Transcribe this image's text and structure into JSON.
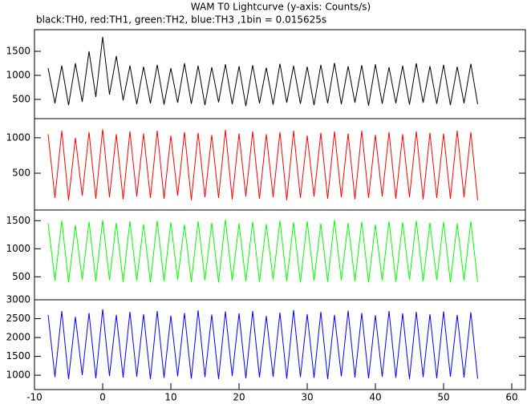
{
  "chart_data": [
    {
      "type": "line",
      "title": "WAM T0 Lightcurve (y-axis: Counts/s)",
      "subtitle": "black:TH0, red:TH1, green:TH2, blue:TH3 ,1bin = 0.015625s",
      "color": "#000000",
      "xlim": [
        -10,
        62
      ],
      "ylim": [
        100,
        1950
      ],
      "yticks": [
        500,
        1000,
        1500
      ],
      "x": [
        -8,
        -7,
        -6,
        -5,
        -4,
        -3,
        -2,
        -1,
        0,
        1,
        2,
        3,
        4,
        5,
        6,
        7,
        8,
        9,
        10,
        11,
        12,
        13,
        14,
        15,
        16,
        17,
        18,
        19,
        20,
        21,
        22,
        23,
        24,
        25,
        26,
        27,
        28,
        29,
        30,
        31,
        32,
        33,
        34,
        35,
        36,
        37,
        38,
        39,
        40,
        41,
        42,
        43,
        44,
        45,
        46,
        47,
        48,
        49,
        50,
        51,
        52,
        53,
        54,
        55
      ],
      "values": [
        1150,
        420,
        1200,
        380,
        1250,
        450,
        1500,
        550,
        1800,
        600,
        1400,
        480,
        1200,
        400,
        1180,
        420,
        1220,
        390,
        1150,
        430,
        1250,
        410,
        1200,
        380,
        1170,
        440,
        1230,
        400,
        1190,
        360,
        1210,
        420,
        1160,
        390,
        1240,
        430,
        1200,
        410,
        1180,
        380,
        1220,
        420,
        1260,
        400,
        1190,
        430,
        1210,
        370,
        1230,
        410,
        1170,
        420,
        1200,
        390,
        1250,
        430,
        1190,
        410,
        1220,
        380,
        1180,
        420,
        1240,
        400
      ]
    },
    {
      "type": "line",
      "color": "#ff0000",
      "xlim": [
        -10,
        62
      ],
      "ylim": [
        -20,
        1270
      ],
      "yticks": [
        500,
        1000
      ],
      "x": [
        -8,
        -7,
        -6,
        -5,
        -4,
        -3,
        -2,
        -1,
        0,
        1,
        2,
        3,
        4,
        5,
        6,
        7,
        8,
        9,
        10,
        11,
        12,
        13,
        14,
        15,
        16,
        17,
        18,
        19,
        20,
        21,
        22,
        23,
        24,
        25,
        26,
        27,
        28,
        29,
        30,
        31,
        32,
        33,
        34,
        35,
        36,
        37,
        38,
        39,
        40,
        41,
        42,
        43,
        44,
        45,
        46,
        47,
        48,
        49,
        50,
        51,
        52,
        53,
        54,
        55
      ],
      "values": [
        1050,
        150,
        1100,
        120,
        1000,
        180,
        1080,
        140,
        1120,
        160,
        1050,
        130,
        1090,
        170,
        1060,
        150,
        1100,
        140,
        1030,
        180,
        1080,
        120,
        1070,
        160,
        1040,
        150,
        1110,
        130,
        1060,
        170,
        1090,
        140,
        1050,
        160,
        1080,
        120,
        1100,
        150,
        1030,
        170,
        1070,
        140,
        1090,
        160,
        1060,
        130,
        1100,
        150,
        1040,
        170,
        1080,
        140,
        1050,
        160,
        1090,
        130,
        1070,
        150,
        1060,
        140,
        1100,
        160,
        1080,
        120
      ]
    },
    {
      "type": "line",
      "color": "#00ff00",
      "xlim": [
        -10,
        62
      ],
      "ylim": [
        90,
        1690
      ],
      "yticks": [
        500,
        1000,
        1500
      ],
      "x": [
        -8,
        -7,
        -6,
        -5,
        -4,
        -3,
        -2,
        -1,
        0,
        1,
        2,
        3,
        4,
        5,
        6,
        7,
        8,
        9,
        10,
        11,
        12,
        13,
        14,
        15,
        16,
        17,
        18,
        19,
        20,
        21,
        22,
        23,
        24,
        25,
        26,
        27,
        28,
        29,
        30,
        31,
        32,
        33,
        34,
        35,
        36,
        37,
        38,
        39,
        40,
        41,
        42,
        43,
        44,
        45,
        46,
        47,
        48,
        49,
        50,
        51,
        52,
        53,
        54,
        55
      ],
      "values": [
        1450,
        430,
        1500,
        400,
        1420,
        450,
        1480,
        420,
        1510,
        440,
        1460,
        410,
        1490,
        430,
        1440,
        400,
        1500,
        420,
        1470,
        450,
        1430,
        410,
        1490,
        440,
        1460,
        400,
        1520,
        430,
        1450,
        420,
        1480,
        410,
        1440,
        450,
        1500,
        420,
        1470,
        400,
        1490,
        430,
        1450,
        410,
        1510,
        440,
        1460,
        420,
        1480,
        400,
        1430,
        430,
        1490,
        410,
        1470,
        450,
        1500,
        420,
        1460,
        440,
        1480,
        400,
        1450,
        430,
        1490,
        410
      ]
    },
    {
      "type": "line",
      "color": "#0000ff",
      "xlim": [
        -10,
        62
      ],
      "ylim": [
        620,
        3000
      ],
      "yticks": [
        1000,
        1500,
        2000,
        2500,
        3000
      ],
      "xticks": [
        -10,
        0,
        10,
        20,
        30,
        40,
        50,
        60
      ],
      "x": [
        -8,
        -7,
        -6,
        -5,
        -4,
        -3,
        -2,
        -1,
        0,
        1,
        2,
        3,
        4,
        5,
        6,
        7,
        8,
        9,
        10,
        11,
        12,
        13,
        14,
        15,
        16,
        17,
        18,
        19,
        20,
        21,
        22,
        23,
        24,
        25,
        26,
        27,
        28,
        29,
        30,
        31,
        32,
        33,
        34,
        35,
        36,
        37,
        38,
        39,
        40,
        41,
        42,
        43,
        44,
        45,
        46,
        47,
        48,
        49,
        50,
        51,
        52,
        53,
        54,
        55
      ],
      "values": [
        2600,
        950,
        2700,
        900,
        2550,
        1000,
        2650,
        920,
        2750,
        980,
        2600,
        940,
        2680,
        960,
        2620,
        900,
        2700,
        930,
        2580,
        970,
        2650,
        910,
        2720,
        950,
        2610,
        900,
        2690,
        980,
        2640,
        920,
        2700,
        940,
        2570,
        960,
        2660,
        910,
        2730,
        950,
        2620,
        930,
        2680,
        900,
        2600,
        970,
        2710,
        940,
        2650,
        920,
        2590,
        960,
        2700,
        930,
        2640,
        900,
        2680,
        950,
        2620,
        920,
        2690,
        960,
        2600,
        940,
        2670,
        910
      ]
    }
  ]
}
